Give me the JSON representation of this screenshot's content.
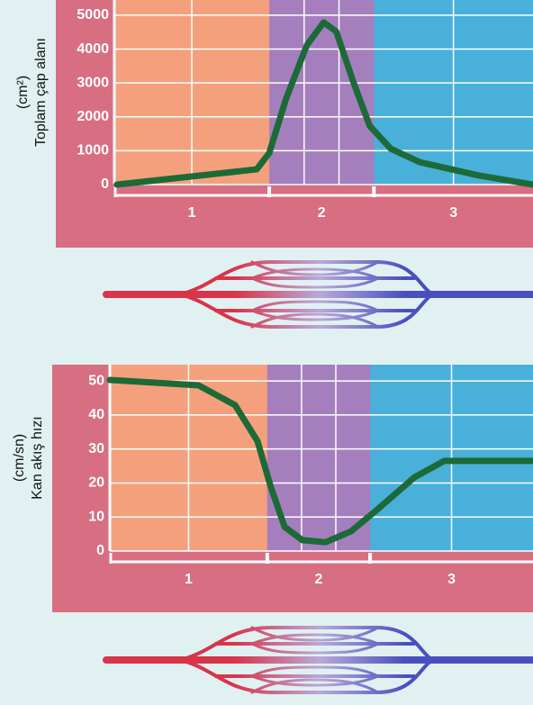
{
  "chart_data": [
    {
      "type": "line",
      "ylabel": "Toplam çap alanı",
      "ylabel_unit": "(cm²)",
      "x": [
        0.6,
        34,
        37,
        41,
        46,
        50,
        53,
        57,
        61,
        66,
        73,
        87,
        100
      ],
      "series": [
        {
          "color": "#1c6a37",
          "values": [
            0,
            450,
            930,
            2530,
            4120,
            4790,
            4520,
            3060,
            1730,
            1060,
            660,
            270,
            0
          ]
        }
      ],
      "xlim": [
        0,
        100
      ],
      "ylim": [
        0,
        5450
      ],
      "yticks": [
        0,
        1000,
        2000,
        3000,
        4000,
        5000
      ],
      "grid": true,
      "regions": [
        {
          "label": "1",
          "start": 0,
          "end": 37,
          "color": "#f5a07c"
        },
        {
          "label": "2",
          "start": 37,
          "end": 62,
          "color": "#a57fbd"
        },
        {
          "label": "3",
          "start": 62,
          "end": 100,
          "color": "#49b0da"
        }
      ]
    },
    {
      "type": "line",
      "ylabel": "Kan akış hızı",
      "ylabel_unit": "(cm/sn)",
      "x": [
        0,
        21,
        29.6,
        34.9,
        38,
        41.3,
        45.5,
        51,
        57,
        63.4,
        72,
        79,
        86.6,
        100
      ],
      "series": [
        {
          "color": "#1c6a37",
          "values": [
            50.3,
            48.7,
            42.9,
            32.3,
            19,
            7.1,
            3.2,
            2.6,
            5.8,
            12.4,
            21.7,
            26.5,
            26.5,
            26.5
          ]
        }
      ],
      "xlim": [
        0,
        100
      ],
      "ylim": [
        0,
        54.8
      ],
      "yticks": [
        0,
        10,
        20,
        30,
        40,
        50
      ],
      "grid": true,
      "regions": [
        {
          "label": "1",
          "start": 0,
          "end": 37.2,
          "color": "#f5a07c"
        },
        {
          "label": "2",
          "start": 37.2,
          "end": 61.5,
          "color": "#a57fbd"
        },
        {
          "label": "3",
          "start": 61.5,
          "end": 100,
          "color": "#49b0da"
        }
      ]
    }
  ]
}
